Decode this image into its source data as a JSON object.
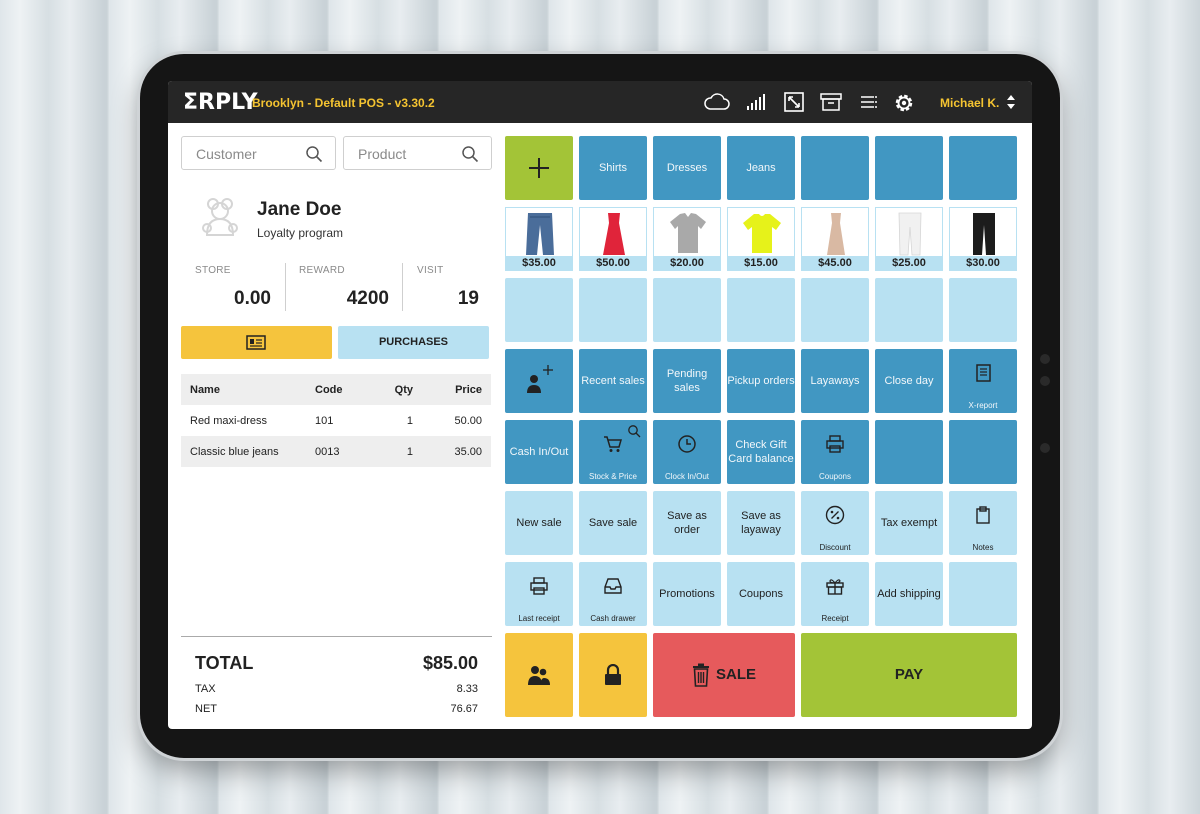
{
  "header": {
    "logo": "ΣRPLY",
    "store_title": "Brooklyn - Default POS - v3.30.2",
    "user": "Michael K.",
    "icons": [
      "cloud-icon",
      "signal-icon",
      "expand-icon",
      "archive-icon",
      "list-icon",
      "gear-icon"
    ]
  },
  "search": {
    "customer_placeholder": "Customer",
    "product_placeholder": "Product"
  },
  "customer": {
    "name": "Jane Doe",
    "subtitle": "Loyalty program",
    "stats": [
      {
        "label": "STORE",
        "value": "0.00"
      },
      {
        "label": "REWARD",
        "value": "4200"
      },
      {
        "label": "VISIT",
        "value": "19"
      }
    ],
    "purchases_label": "PURCHASES"
  },
  "cart": {
    "columns": [
      "Name",
      "Code",
      "Qty",
      "Price"
    ],
    "rows": [
      {
        "name": "Red maxi-dress",
        "code": "101",
        "qty": "1",
        "price": "50.00"
      },
      {
        "name": "Classic blue jeans",
        "code": "0013",
        "qty": "1",
        "price": "35.00"
      }
    ]
  },
  "totals": {
    "total_label": "TOTAL",
    "total_value": "$85.00",
    "tax_label": "TAX",
    "tax_value": "8.33",
    "net_label": "NET",
    "net_value": "76.67"
  },
  "categories": [
    "Shirts",
    "Dresses",
    "Jeans"
  ],
  "products": [
    {
      "price": "$35.00",
      "item": "blue-jeans"
    },
    {
      "price": "$50.00",
      "item": "red-dress"
    },
    {
      "price": "$20.00",
      "item": "grey-polo-shirt"
    },
    {
      "price": "$15.00",
      "item": "yellow-tshirt"
    },
    {
      "price": "$45.00",
      "item": "beige-dress"
    },
    {
      "price": "$25.00",
      "item": "white-pants"
    },
    {
      "price": "$30.00",
      "item": "black-pants"
    }
  ],
  "actions": {
    "recent_sales": "Recent sales",
    "pending_sales": "Pending sales",
    "pickup_orders": "Pickup orders",
    "layaways": "Layaways",
    "close_day": "Close day",
    "x_report": "X-report",
    "cash_in_out": "Cash In/Out",
    "stock_price": "Stock & Price",
    "clock_in_out": "Clock In/Out",
    "check_gift_card": "Check Gift Card balance",
    "coupons_print": "Coupons",
    "new_sale": "New sale",
    "save_sale": "Save sale",
    "save_as_order": "Save as order",
    "save_as_layaway": "Save as layaway",
    "discount": "Discount",
    "tax_exempt": "Tax exempt",
    "notes": "Notes",
    "last_receipt": "Last receipt",
    "cash_drawer": "Cash drawer",
    "promotions": "Promotions",
    "coupons": "Coupons",
    "receipt": "Receipt",
    "add_shipping": "Add shipping",
    "sale": "SALE",
    "pay": "PAY"
  }
}
